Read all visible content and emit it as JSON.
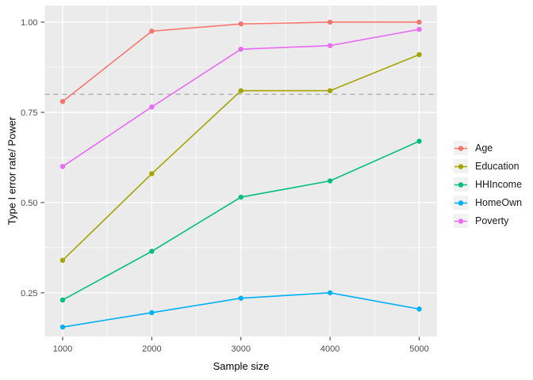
{
  "chart_data": {
    "type": "line",
    "title": "",
    "xlabel": "Sample size",
    "ylabel": "Type I error rate/ Power",
    "x": [
      1000,
      2000,
      3000,
      4000,
      5000
    ],
    "x_tick_labels": [
      "1000",
      "2000",
      "3000",
      "4000",
      "5000"
    ],
    "y_ticks": [
      0.25,
      0.5,
      0.75,
      1.0
    ],
    "y_tick_labels": [
      "0.25",
      "0.50",
      "0.75",
      "1.00"
    ],
    "x_minor": [
      1500,
      2500,
      3500,
      4500
    ],
    "y_minor": [
      0.375,
      0.625,
      0.875
    ],
    "xlim": [
      800,
      5200
    ],
    "ylim": [
      0.129,
      1.046
    ],
    "grid": true,
    "legend_position": "right",
    "reference_line": {
      "y": 0.8,
      "style": "dashed",
      "color": "#A8A8A8"
    },
    "series": [
      {
        "name": "Age",
        "color": "#F8766D",
        "values": [
          0.78,
          0.975,
          0.995,
          1.0,
          1.0
        ]
      },
      {
        "name": "Education",
        "color": "#A3A500",
        "values": [
          0.34,
          0.58,
          0.81,
          0.81,
          0.91
        ]
      },
      {
        "name": "HHIncome",
        "color": "#00BF7D",
        "values": [
          0.23,
          0.365,
          0.515,
          0.56,
          0.67
        ]
      },
      {
        "name": "HomeOwn",
        "color": "#00B0F6",
        "values": [
          0.155,
          0.195,
          0.235,
          0.25,
          0.205
        ]
      },
      {
        "name": "Poverty",
        "color": "#E76BF3",
        "values": [
          0.6,
          0.765,
          0.925,
          0.935,
          0.98
        ]
      }
    ],
    "theme": {
      "panel_bg": "#EBEBEB",
      "grid_color": "#FFFFFF",
      "tick_color": "#333333",
      "tick_label_color": "#4D4D4D",
      "axis_title_color": "#000000",
      "legend_key_bg": "#F2F2F2"
    }
  }
}
